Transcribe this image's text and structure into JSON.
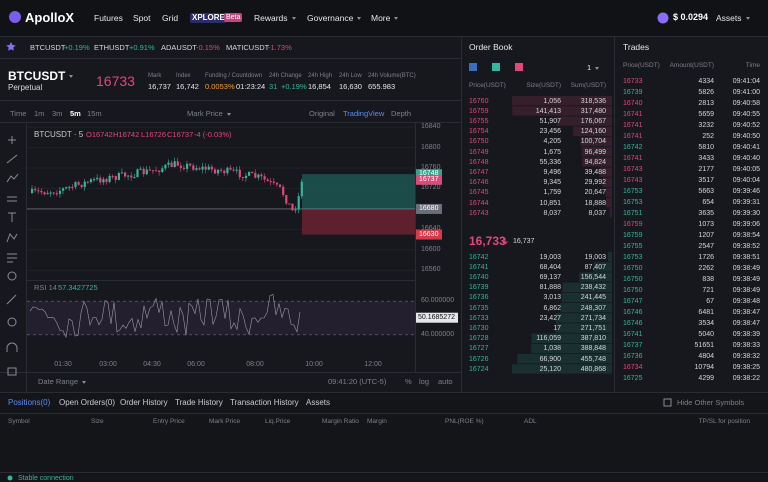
{
  "nav": {
    "logo": "ApolloX",
    "menu": [
      "Futures",
      "Spot",
      "Grid"
    ],
    "xplore": "XPLORE",
    "beta": "Beta",
    "dropdowns": [
      "Rewards",
      "Governance",
      "More"
    ],
    "balance": "$ 0.0294",
    "assets": "Assets"
  },
  "tickers": [
    {
      "symbol": "BTCUSDT",
      "change": "+0.19%"
    },
    {
      "symbol": "ETHUSDT",
      "change": "+0.91%"
    },
    {
      "symbol": "ADAUSDT",
      "change": "-0.15%"
    },
    {
      "symbol": "MATICUSDT",
      "change": "-1.73%"
    }
  ],
  "symbol": {
    "name": "BTCUSDT",
    "type": "Perpetual",
    "price": "16733",
    "stats": [
      {
        "label": "Mark",
        "values": [
          "16,737"
        ]
      },
      {
        "label": "Index",
        "values": [
          "16,742"
        ]
      },
      {
        "label": "Funding / Countdown",
        "values": [
          "0.0053%",
          "01:23:24"
        ]
      },
      {
        "label": "24h Change",
        "values": [
          "31",
          "+0.19%"
        ]
      },
      {
        "label": "24h High",
        "values": [
          "16,854"
        ]
      },
      {
        "label": "24h Low",
        "values": [
          "16,630"
        ]
      },
      {
        "label": "24h Volume(BTC)",
        "values": [
          "655.983"
        ]
      }
    ]
  },
  "chart": {
    "toolbar": {
      "intervals": [
        "Time",
        "1m",
        "3m",
        "5m",
        "15m"
      ],
      "price_type": "Mark Price",
      "views": [
        "Original",
        "TradingView",
        "Depth"
      ]
    },
    "legend": {
      "symbol": "BTCUSDT · 5",
      "ohlc": [
        "O16742",
        "H16742",
        "L16726",
        "C16737",
        "-4 (-0.03%)"
      ]
    },
    "price_axis": {
      "ylim": [
        16545,
        16850
      ],
      "ticks": [
        16840,
        16800,
        16760,
        16720,
        16680,
        16640,
        16600,
        16560
      ],
      "tags": [
        {
          "value": 16748,
          "color": "#2fa88f"
        },
        {
          "value": 16737,
          "color": "#e0487a"
        },
        {
          "value": 16680,
          "color": "#6b6e78"
        },
        {
          "value": 16630,
          "color": "#d83a4a"
        }
      ]
    },
    "rsi": {
      "label": "RSI 14",
      "value": "57.3427725",
      "ylim": [
        28,
        72
      ],
      "ticks": [
        {
          "value": 60,
          "label": "60.000000"
        },
        {
          "value": 40,
          "label": "40.000000"
        }
      ],
      "tag": {
        "value": 50.1685272,
        "label": "50.1685272"
      }
    },
    "time_axis": [
      "01:30",
      "03:00",
      "04:30",
      "06:00",
      "08:00",
      "10:00",
      "12:00"
    ],
    "bottom": {
      "date_range": "Date Range",
      "clock": "09:41:20 (UTC-5)",
      "options": [
        "%",
        "log",
        "auto"
      ]
    }
  },
  "order_book": {
    "title": "Order Book",
    "step": "1",
    "headers": [
      "Price(USDT)",
      "Size(USDT)",
      "Sum(USDT)"
    ],
    "asks": [
      [
        "16760",
        "1,056",
        "318,536"
      ],
      [
        "16759",
        "141,413",
        "317,480"
      ],
      [
        "16755",
        "51,907",
        "176,067"
      ],
      [
        "16754",
        "23,456",
        "124,160"
      ],
      [
        "16750",
        "4,205",
        "100,704"
      ],
      [
        "16749",
        "1,675",
        "96,499"
      ],
      [
        "16748",
        "55,336",
        "94,824"
      ],
      [
        "16747",
        "9,496",
        "39,488"
      ],
      [
        "16746",
        "9,345",
        "29,992"
      ],
      [
        "16745",
        "1,759",
        "20,647"
      ],
      [
        "16744",
        "10,851",
        "18,888"
      ],
      [
        "16743",
        "8,037",
        "8,037"
      ]
    ],
    "mid": {
      "price": "16,733",
      "mark": "16,737"
    },
    "bids": [
      [
        "16742",
        "19,003",
        "19,003"
      ],
      [
        "16741",
        "68,404",
        "87,407"
      ],
      [
        "16740",
        "69,137",
        "156,544"
      ],
      [
        "16739",
        "81,888",
        "238,432"
      ],
      [
        "16736",
        "3,013",
        "241,445"
      ],
      [
        "16735",
        "6,862",
        "248,307"
      ],
      [
        "16733",
        "23,427",
        "271,734"
      ],
      [
        "16730",
        "17",
        "271,751"
      ],
      [
        "16728",
        "116,059",
        "387,810"
      ],
      [
        "16727",
        "1,038",
        "388,848"
      ],
      [
        "16726",
        "66,900",
        "455,748"
      ],
      [
        "16724",
        "25,120",
        "480,868"
      ]
    ]
  },
  "trades": {
    "title": "Trades",
    "headers": [
      "Price(USDT)",
      "Amount(USDT)",
      "Time"
    ],
    "rows": [
      [
        16733,
        4334,
        "09:41:04",
        "#e0487a"
      ],
      [
        16739,
        5826,
        "09:41:00",
        "#2fb89c"
      ],
      [
        16740,
        2813,
        "09:40:58",
        "#e0487a"
      ],
      [
        16741,
        5659,
        "09:40:55",
        "#e0487a"
      ],
      [
        16741,
        3232,
        "09:40:52",
        "#e0487a"
      ],
      [
        16741,
        252,
        "09:40:50",
        "#e0487a"
      ],
      [
        16742,
        5810,
        "09:40:41",
        "#2fb89c"
      ],
      [
        16741,
        3433,
        "09:40:40",
        "#e0487a"
      ],
      [
        16743,
        2177,
        "09:40:05",
        "#e0487a"
      ],
      [
        16743,
        3517,
        "09:40:04",
        "#e0487a"
      ],
      [
        16753,
        5663,
        "09:39:46",
        "#2fb89c"
      ],
      [
        16753,
        654,
        "09:39:31",
        "#2fb89c"
      ],
      [
        16751,
        3635,
        "09:39:30",
        "#2fb89c"
      ],
      [
        16759,
        1073,
        "09:39:06",
        "#e0487a"
      ],
      [
        16759,
        1207,
        "09:38:54",
        "#2fb89c"
      ],
      [
        16755,
        2547,
        "09:38:52",
        "#2fb89c"
      ],
      [
        16753,
        1726,
        "09:38:51",
        "#2fb89c"
      ],
      [
        16750,
        2262,
        "09:38:49",
        "#2fb89c"
      ],
      [
        16750,
        838,
        "09:38:49",
        "#2fb89c"
      ],
      [
        16750,
        721,
        "09:38:49",
        "#2fb89c"
      ],
      [
        16747,
        67,
        "09:38:48",
        "#2fb89c"
      ],
      [
        16746,
        6481,
        "09:38:47",
        "#2fb89c"
      ],
      [
        16746,
        3534,
        "09:38:47",
        "#2fb89c"
      ],
      [
        16741,
        5040,
        "09:38:39",
        "#2fb89c"
      ],
      [
        16737,
        51651,
        "09:38:33",
        "#2fb89c"
      ],
      [
        16736,
        4804,
        "09:38:32",
        "#2fb89c"
      ],
      [
        16734,
        10794,
        "09:38:25",
        "#e0487a"
      ],
      [
        16725,
        4299,
        "09:38:22",
        "#2fb89c"
      ]
    ]
  },
  "positions": {
    "tabs": [
      "Positions(0)",
      "Open Orders(0)",
      "Order History",
      "Trade History",
      "Transaction History",
      "Assets"
    ],
    "hide": "Hide Other Symbols",
    "columns": [
      "Symbol",
      "Size",
      "Entry Price",
      "Mark Price",
      "Liq.Price",
      "Margin Ratio",
      "Margin",
      "PNL(ROE %)",
      "ADL",
      "TP/SL for position"
    ],
    "status": "Stable connection"
  }
}
